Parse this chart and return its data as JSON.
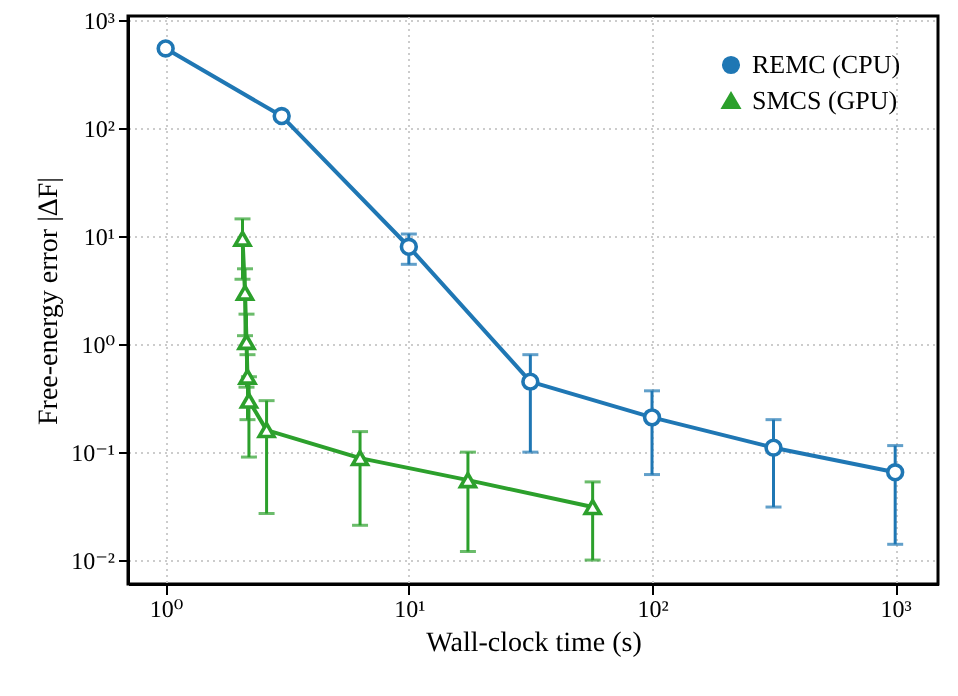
{
  "chart_data": {
    "type": "line",
    "xlabel": "Wall-clock time (s)",
    "ylabel": "Free-energy error |ΔF|",
    "log": "xy",
    "grid": true,
    "legend": "top right",
    "xlim": [
      0.7,
      1500
    ],
    "ylim": [
      0.006,
      1100
    ],
    "xticks": [
      {
        "value": 1,
        "label": "10⁰"
      },
      {
        "value": 10,
        "label": "10¹"
      },
      {
        "value": 100,
        "label": "10²"
      },
      {
        "value": 1000,
        "label": "10³"
      }
    ],
    "yticks": [
      {
        "value": 0.01,
        "label": "10⁻²"
      },
      {
        "value": 0.1,
        "label": "10⁻¹"
      },
      {
        "value": 1,
        "label": "10⁰"
      },
      {
        "value": 10,
        "label": "10¹"
      },
      {
        "value": 100,
        "label": "10²"
      },
      {
        "value": 1000,
        "label": "10³"
      }
    ],
    "series": [
      {
        "name": "REMC (CPU)",
        "color": "#1f77b4",
        "marker": "circle",
        "x": [
          1,
          3,
          10,
          31.6,
          100,
          316,
          1000
        ],
        "values": [
          550,
          130,
          8,
          0.45,
          0.21,
          0.11,
          0.065
        ],
        "errors": [
          null,
          null,
          [
            5.5,
            10.5
          ],
          [
            0.1,
            0.8
          ],
          [
            0.062,
            0.37
          ],
          [
            0.031,
            0.2
          ],
          [
            0.014,
            0.115
          ]
        ]
      },
      {
        "name": "SMCS (GPU)",
        "color": "#2ca02c",
        "marker": "triangle",
        "x": [
          2.07,
          2.12,
          2.15,
          2.17,
          2.2,
          2.6,
          6.3,
          17.5,
          57
        ],
        "values": [
          9.5,
          3.0,
          1.05,
          0.5,
          0.3,
          0.16,
          0.088,
          0.055,
          0.031
        ],
        "errors": [
          [
            4,
            14.5
          ],
          [
            1.2,
            5
          ],
          [
            0.4,
            1.9
          ],
          [
            0.2,
            0.8
          ],
          [
            0.09,
            0.5
          ],
          [
            0.027,
            0.3
          ],
          [
            0.021,
            0.155
          ],
          [
            0.012,
            0.1
          ],
          [
            0.01,
            0.053
          ]
        ]
      }
    ]
  }
}
